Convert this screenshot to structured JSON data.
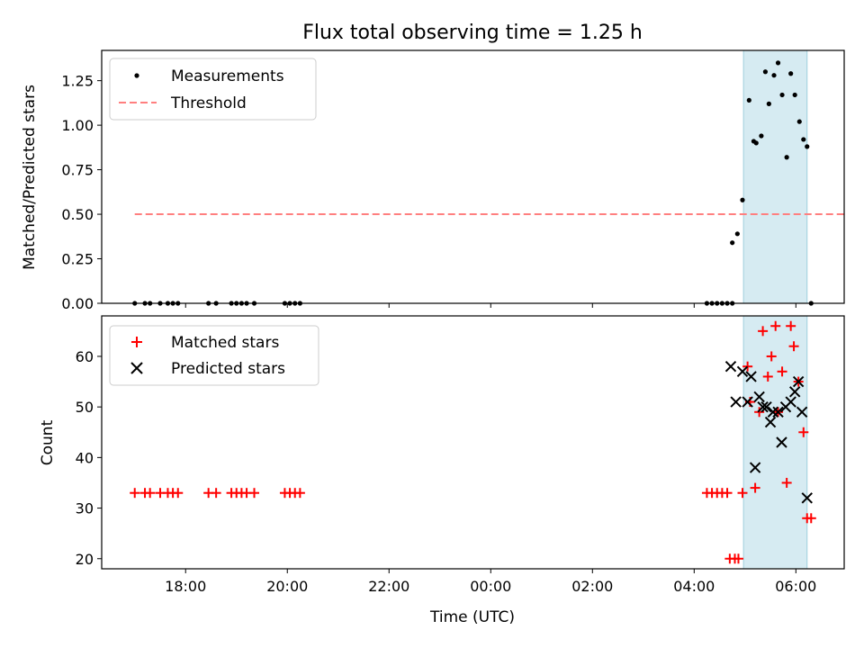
{
  "chart_data": [
    {
      "panel": "top",
      "type": "scatter",
      "title": "Flux total observing time = 1.25 h",
      "xlabel": "",
      "ylabel": "Matched/Predicted stars",
      "xlim_hours": [
        16.35,
        30.95
      ],
      "ylim": [
        0.0,
        1.42
      ],
      "yticks": [
        "0.00",
        "0.25",
        "0.50",
        "0.75",
        "1.00",
        "1.25"
      ],
      "ytick_values": [
        0,
        0.25,
        0.5,
        0.75,
        1.0,
        1.25
      ],
      "legend_position": "upper-left",
      "highlight_span_hours": [
        28.97,
        30.22
      ],
      "series": [
        {
          "name": "Measurements",
          "color": "#000000",
          "marker": "dot",
          "x": [
            17.0,
            17.2,
            17.3,
            17.5,
            17.65,
            17.75,
            17.85,
            18.45,
            18.6,
            18.9,
            19.0,
            19.1,
            19.2,
            19.35,
            19.95,
            20.05,
            20.15,
            20.25,
            28.25,
            28.35,
            28.45,
            28.55,
            28.65,
            28.75,
            28.75,
            28.85,
            28.95,
            29.08,
            29.17,
            29.22,
            29.32,
            29.4,
            29.47,
            29.57,
            29.65,
            29.73,
            29.82,
            29.9,
            29.98,
            30.07,
            30.15,
            30.22,
            30.3
          ],
          "y": [
            0,
            0,
            0,
            0,
            0,
            0,
            0,
            0,
            0,
            0,
            0,
            0,
            0,
            0,
            0,
            0,
            0,
            0,
            0,
            0,
            0,
            0,
            0,
            0,
            0.34,
            0.39,
            0.58,
            1.14,
            0.91,
            0.9,
            0.94,
            1.3,
            1.12,
            1.28,
            1.35,
            1.17,
            0.82,
            1.29,
            1.17,
            1.02,
            0.92,
            0.88,
            0
          ]
        },
        {
          "name": "Threshold",
          "color": "#ff7f7f",
          "style": "dashed",
          "x": [
            17.0,
            30.95
          ],
          "y": [
            0.5,
            0.5
          ]
        }
      ]
    },
    {
      "panel": "bottom",
      "type": "scatter",
      "title": "",
      "xlabel": "Time (UTC)",
      "ylabel": "Count",
      "xlim_hours": [
        16.35,
        30.95
      ],
      "ylim": [
        18,
        68
      ],
      "yticks": [
        "20",
        "30",
        "40",
        "50",
        "60"
      ],
      "ytick_values": [
        20,
        30,
        40,
        50,
        60
      ],
      "xticks": [
        "18:00",
        "20:00",
        "22:00",
        "00:00",
        "02:00",
        "04:00",
        "06:00"
      ],
      "xtick_hours": [
        18,
        20,
        22,
        24,
        26,
        28,
        30
      ],
      "legend_position": "upper-left",
      "highlight_span_hours": [
        28.97,
        30.22
      ],
      "series": [
        {
          "name": "Matched stars",
          "color": "#ff0000",
          "marker": "plus",
          "x": [
            17.0,
            17.2,
            17.3,
            17.5,
            17.65,
            17.75,
            17.85,
            18.45,
            18.6,
            18.9,
            19.0,
            19.1,
            19.2,
            19.35,
            19.95,
            20.05,
            20.15,
            20.25,
            28.25,
            28.35,
            28.45,
            28.55,
            28.65,
            28.7,
            28.8,
            28.87,
            28.95,
            29.05,
            29.1,
            29.2,
            29.28,
            29.35,
            29.45,
            29.52,
            29.6,
            29.65,
            29.73,
            29.82,
            29.9,
            29.96,
            30.05,
            30.15,
            30.22,
            30.3
          ],
          "y": [
            33,
            33,
            33,
            33,
            33,
            33,
            33,
            33,
            33,
            33,
            33,
            33,
            33,
            33,
            33,
            33,
            33,
            33,
            33,
            33,
            33,
            33,
            33,
            20,
            20,
            20,
            33,
            58,
            51,
            34,
            49,
            65,
            56,
            60,
            66,
            49,
            57,
            35,
            66,
            62,
            55,
            45,
            28,
            28
          ]
        },
        {
          "name": "Predicted stars",
          "color": "#000000",
          "marker": "x",
          "x": [
            28.72,
            28.82,
            28.95,
            29.05,
            29.12,
            29.2,
            29.28,
            29.35,
            29.42,
            29.5,
            29.55,
            29.65,
            29.72,
            29.8,
            29.9,
            29.98,
            30.05,
            30.12,
            30.22
          ],
          "y": [
            58,
            51,
            57,
            51,
            56,
            38,
            52,
            50,
            50,
            47,
            49,
            49,
            43,
            50,
            51,
            53,
            55,
            49,
            32
          ]
        }
      ]
    }
  ]
}
